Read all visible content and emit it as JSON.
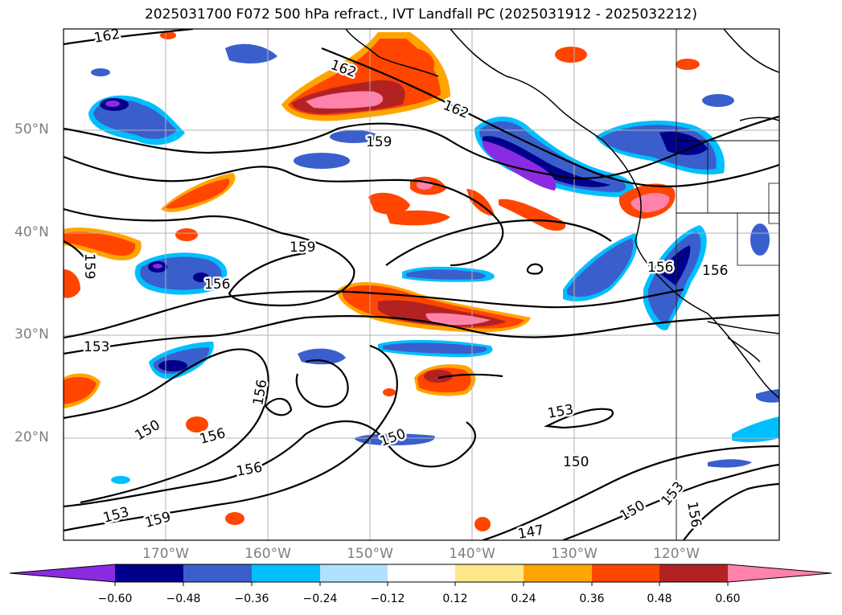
{
  "title": "2025031700 F072 500 hPa refract., IVT Landfall PC (2025031912 - 2025032212)",
  "lat_labels": [
    "50°N",
    "40°N",
    "30°N",
    "20°N"
  ],
  "lon_labels": [
    "170°W",
    "160°W",
    "150°W",
    "140°W",
    "130°W",
    "120°W"
  ],
  "contour_labels": [
    "162",
    "162",
    "162",
    "159",
    "159",
    "159",
    "156",
    "156",
    "156",
    "156",
    "156",
    "156",
    "153",
    "153",
    "153",
    "153",
    "150",
    "150",
    "150",
    "150",
    "147"
  ],
  "colorbar": {
    "ticks": [
      "−0.60",
      "−0.48",
      "−0.36",
      "−0.24",
      "−0.12",
      "0.12",
      "0.24",
      "0.36",
      "0.48",
      "0.60"
    ],
    "colors": [
      "#8a2be2",
      "#00008b",
      "#3a5fcd",
      "#00bfff",
      "#b0e2ff",
      "#ffffff",
      "#ffe88a",
      "#ffa500",
      "#ff4500",
      "#b22222",
      "#ff82ab"
    ]
  }
}
